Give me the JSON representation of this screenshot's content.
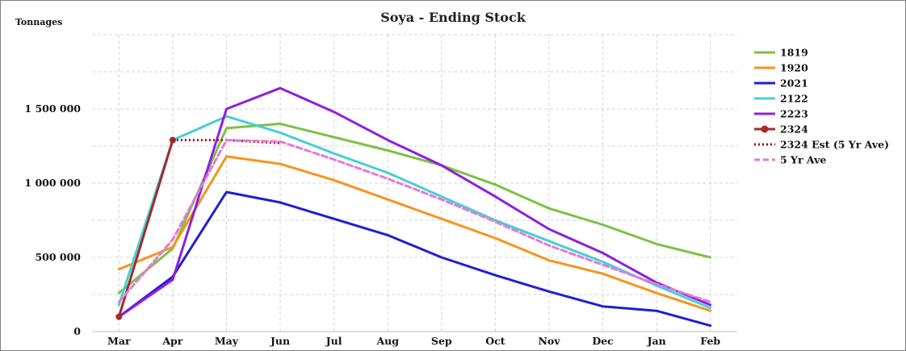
{
  "chart_data": {
    "type": "line",
    "title": "Soya - Ending Stock",
    "ylabel": "Tonnages",
    "xlabel": "",
    "categories": [
      "Mar",
      "Apr",
      "May",
      "Jun",
      "Jul",
      "Aug",
      "Sep",
      "Oct",
      "Nov",
      "Dec",
      "Jan",
      "Feb"
    ],
    "ylim": [
      0,
      2000000
    ],
    "yticks": [
      0,
      500000,
      1000000,
      1500000
    ],
    "ytick_labels": [
      "0",
      "500 000",
      "1 000 000",
      "1 500 000"
    ],
    "grid": true,
    "legend_position": "right",
    "series": [
      {
        "name": "1819",
        "color": "#7cc242",
        "style": "solid",
        "marker": false,
        "values": [
          260000,
          560000,
          1370000,
          1400000,
          1310000,
          1220000,
          1120000,
          990000,
          830000,
          720000,
          590000,
          500000
        ]
      },
      {
        "name": "1920",
        "color": "#f7941d",
        "style": "solid",
        "marker": false,
        "values": [
          420000,
          570000,
          1180000,
          1130000,
          1020000,
          890000,
          760000,
          630000,
          480000,
          390000,
          260000,
          140000
        ]
      },
      {
        "name": "2021",
        "color": "#1f1fd4",
        "style": "solid",
        "marker": false,
        "values": [
          100000,
          370000,
          940000,
          870000,
          760000,
          650000,
          500000,
          380000,
          270000,
          170000,
          140000,
          40000
        ]
      },
      {
        "name": "2122",
        "color": "#45d0d4",
        "style": "solid",
        "marker": false,
        "values": [
          180000,
          1290000,
          1450000,
          1340000,
          1200000,
          1070000,
          910000,
          750000,
          610000,
          470000,
          310000,
          160000
        ]
      },
      {
        "name": "2223",
        "color": "#8e1fe0",
        "style": "solid",
        "marker": false,
        "values": [
          100000,
          350000,
          1500000,
          1640000,
          1480000,
          1290000,
          1120000,
          910000,
          690000,
          530000,
          330000,
          180000
        ]
      },
      {
        "name": "2324",
        "color": "#a52a2a",
        "style": "solid",
        "marker": true,
        "values": [
          100000,
          1290000,
          null,
          null,
          null,
          null,
          null,
          null,
          null,
          null,
          null,
          null
        ]
      },
      {
        "name": "2324 Est (5 Yr Ave)",
        "color": "#9e0b0b",
        "style": "dotted",
        "marker": false,
        "values": [
          null,
          1290000,
          1290000,
          1270000,
          null,
          null,
          null,
          null,
          null,
          null,
          null,
          null
        ]
      },
      {
        "name": "5 Yr Ave",
        "color": "#e37ad6",
        "style": "dashed",
        "marker": false,
        "values": [
          200000,
          620000,
          1290000,
          1280000,
          1160000,
          1030000,
          890000,
          740000,
          580000,
          450000,
          320000,
          200000
        ]
      }
    ]
  }
}
